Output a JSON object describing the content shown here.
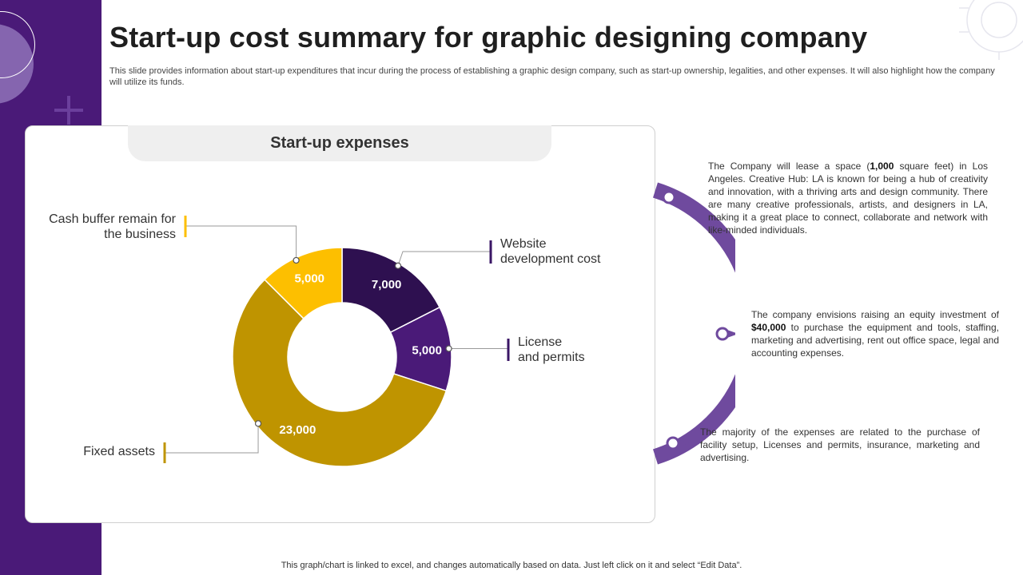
{
  "title": "Start-up cost summary for graphic designing company",
  "subtitle": "This slide provides information about start-up expenditures that incur during the process of establishing a graphic design company, such as start-up ownership, legalities, and other expenses. It will also highlight how the company will utilize its funds.",
  "chart_data": {
    "type": "pie",
    "title": "Start-up expenses",
    "slices": [
      {
        "label": "Website development cost",
        "value": 7000,
        "value_label": "7,000",
        "color": "#2e1050"
      },
      {
        "label": "License and permits",
        "value": 5000,
        "value_label": "5,000",
        "color": "#4a1a78"
      },
      {
        "label": "Fixed assets",
        "value": 23000,
        "value_label": "23,000",
        "color": "#bf9400"
      },
      {
        "label": "Cash buffer remain for the business",
        "value": 5000,
        "value_label": "5,000",
        "color": "#fdbf00"
      }
    ],
    "callouts": {
      "website": [
        "Website",
        "development cost"
      ],
      "license": [
        "License",
        "and permits"
      ],
      "fixed": [
        "Fixed assets"
      ],
      "cash": [
        "Cash buffer remain for",
        "the business"
      ]
    },
    "donut": true
  },
  "notes": {
    "n1": {
      "before": "The Company will lease a space (",
      "bold": "1,000",
      "after": " square feet) in Los Angeles. Creative Hub: LA is known for being a hub of creativity and innovation, with a thriving arts and design community. There are many creative professionals, artists, and designers in LA, making it a great place to connect, collaborate and network with like-minded individuals."
    },
    "n2": {
      "before": "The company envisions raising an equity investment of ",
      "bold": "$40,000",
      "after": " to purchase the equipment and tools, staffing, marketing and advertising, rent out office space, legal and accounting expenses."
    },
    "n3": {
      "text": "The majority of the expenses are related to the purchase of facility setup, Licenses and permits, insurance, marketing and advertising."
    }
  },
  "colors": {
    "band": "#4a1a78",
    "arc": "#6f4a9e",
    "connector_dark": "#3a1665",
    "connector_gold": "#bf9400",
    "connector_yellow": "#fdbf00"
  },
  "footer": "This graph/chart is linked to excel,  and changes automatically based on data. Just left click on it and select “Edit Data”."
}
